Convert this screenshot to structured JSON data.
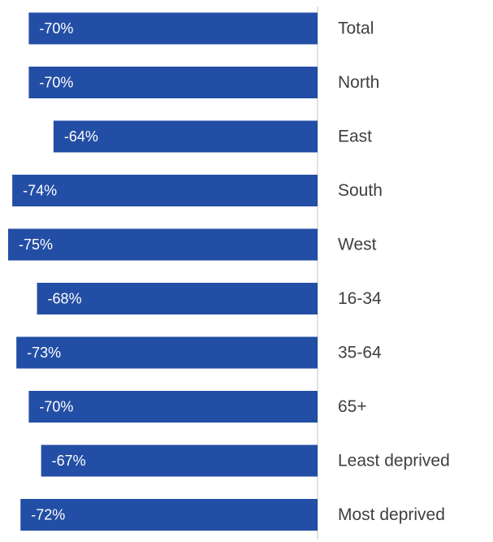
{
  "chart_data": {
    "type": "bar",
    "orientation": "horizontal",
    "categories": [
      "Total",
      "North",
      "East",
      "South",
      "West",
      "16-34",
      "35-64",
      "65+",
      "Least deprived",
      "Most deprived"
    ],
    "values": [
      -70,
      -70,
      -64,
      -74,
      -75,
      -68,
      -73,
      -70,
      -67,
      -72
    ],
    "data_labels": [
      "-70%",
      "-70%",
      "-64%",
      "-74%",
      "-75%",
      "-68%",
      "-73%",
      "-70%",
      "-67%",
      "-72%"
    ],
    "title": "",
    "xlabel": "",
    "ylabel": "",
    "xlim": [
      -76,
      0
    ],
    "grid": false,
    "legend": "none",
    "bar_color": "#234ea5",
    "label_color": "#ffffff",
    "category_label_color": "#404040"
  }
}
